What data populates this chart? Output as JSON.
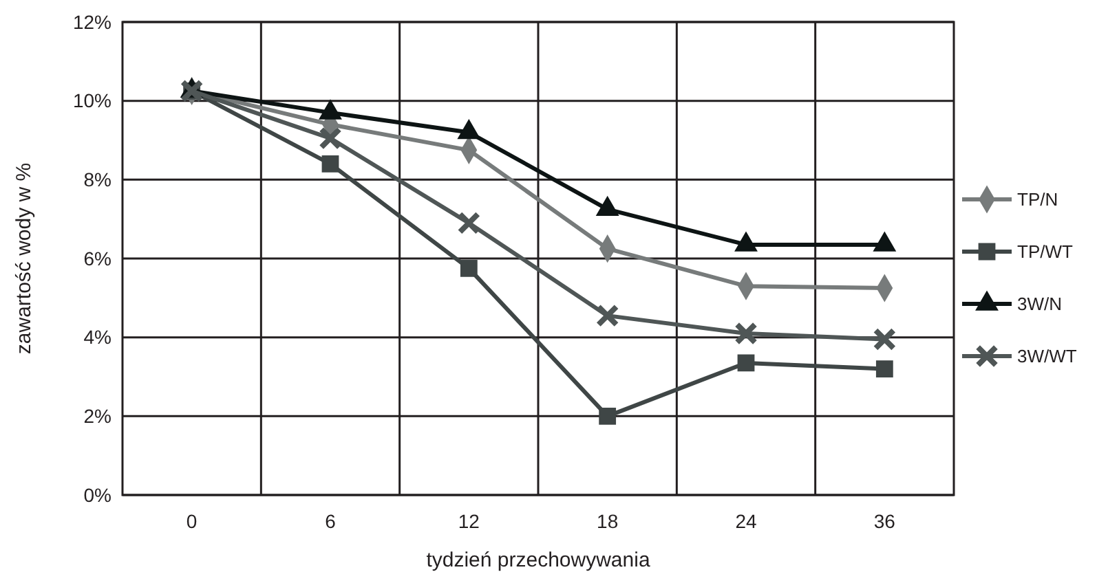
{
  "chart_data": {
    "type": "line",
    "xlabel": "tydzień przechowywania",
    "ylabel": "zawartość wody w %",
    "categories": [
      "0",
      "6",
      "12",
      "18",
      "24",
      "36"
    ],
    "series": [
      {
        "name": "TP/N",
        "color": "#777b7b",
        "marker": "diamond",
        "values": [
          10.25,
          9.4,
          8.75,
          6.25,
          5.3,
          5.25
        ]
      },
      {
        "name": "TP/WT",
        "color": "#3f4646",
        "marker": "square",
        "values": [
          10.25,
          8.4,
          5.75,
          2.0,
          3.35,
          3.2
        ]
      },
      {
        "name": "3W/N",
        "color": "#0d1414",
        "marker": "triangle",
        "values": [
          10.25,
          9.7,
          9.2,
          7.25,
          6.35,
          6.35
        ]
      },
      {
        "name": "3W/WT",
        "color": "#4f5656",
        "marker": "cross",
        "values": [
          10.25,
          9.05,
          6.9,
          4.55,
          4.1,
          3.95
        ]
      }
    ],
    "ylim": [
      0,
      12
    ],
    "yticks": [
      {
        "value": 0,
        "label": "0%"
      },
      {
        "value": 2,
        "label": "2%"
      },
      {
        "value": 4,
        "label": "4%"
      },
      {
        "value": 6,
        "label": "6%"
      },
      {
        "value": 8,
        "label": "8%"
      },
      {
        "value": 10,
        "label": "10%"
      },
      {
        "value": 12,
        "label": "12%"
      }
    ],
    "grid": true,
    "legend": "right"
  }
}
